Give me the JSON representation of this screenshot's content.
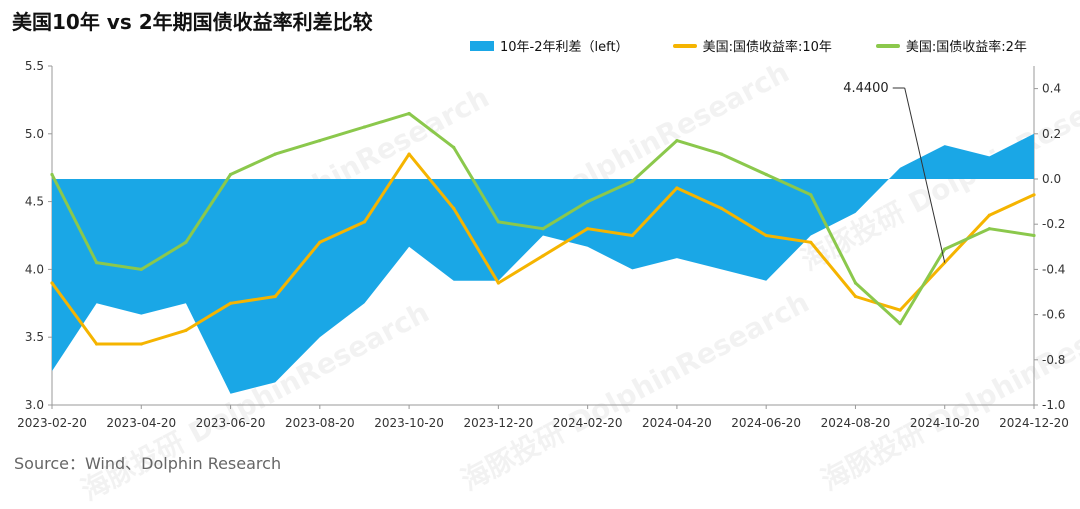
{
  "title": "美国10年 vs 2年期国债收益率利差比较",
  "source": "Source：Wind、Dolphin Research",
  "watermark": "海豚投研 DolphinResearch",
  "colors": {
    "spread": "#1aa7e6",
    "ten_year": "#f5b400",
    "two_year": "#8bc84c"
  },
  "chart_data": {
    "type": "line",
    "title": "美国10年 vs 2年期国债收益率利差比较",
    "x": [
      "2023-02-20",
      "2023-03-20",
      "2023-04-20",
      "2023-05-20",
      "2023-06-20",
      "2023-07-20",
      "2023-08-20",
      "2023-09-20",
      "2023-10-20",
      "2023-11-20",
      "2023-12-20",
      "2024-01-20",
      "2024-02-20",
      "2024-03-20",
      "2024-04-20",
      "2024-05-20",
      "2024-06-20",
      "2024-07-20",
      "2024-08-20",
      "2024-09-20",
      "2024-10-20",
      "2024-11-20",
      "2024-12-20"
    ],
    "x_tick_labels": [
      "2023-02-20",
      "2023-04-20",
      "2023-06-20",
      "2023-08-20",
      "2023-10-20",
      "2023-12-20",
      "2024-02-20",
      "2024-04-20",
      "2024-06-20",
      "2024-08-20",
      "2024-10-20",
      "2024-12-20"
    ],
    "left_axis": {
      "ylim": [
        3.0,
        5.5
      ],
      "ticks": [
        "3.0",
        "3.5",
        "4.0",
        "4.5",
        "5.0",
        "5.5"
      ]
    },
    "right_axis": {
      "ylim": [
        -1.0,
        0.5
      ],
      "ticks": [
        "-1.0",
        "-0.8",
        "-0.6",
        "-0.4",
        "-0.2",
        "0.0",
        "0.2",
        "0.4"
      ]
    },
    "series": [
      {
        "name": "10年-2年利差（left）",
        "kind": "area",
        "axis": "right",
        "values": [
          -0.85,
          -0.55,
          -0.6,
          -0.55,
          -0.95,
          -0.9,
          -0.7,
          -0.55,
          -0.3,
          -0.45,
          -0.45,
          -0.25,
          -0.3,
          -0.4,
          -0.35,
          -0.4,
          -0.45,
          -0.25,
          -0.15,
          0.05,
          0.15,
          0.1,
          0.2
        ]
      },
      {
        "name": "美国:国债收益率:10年",
        "kind": "line",
        "axis": "left",
        "values": [
          3.9,
          3.45,
          3.45,
          3.55,
          3.75,
          3.8,
          4.2,
          4.35,
          4.85,
          4.45,
          3.9,
          4.1,
          4.3,
          4.25,
          4.6,
          4.45,
          4.25,
          4.2,
          3.8,
          3.7,
          4.05,
          4.4,
          4.55
        ]
      },
      {
        "name": "美国:国债收益率:2年",
        "kind": "line",
        "axis": "left",
        "values": [
          4.7,
          4.05,
          4.0,
          4.2,
          4.7,
          4.85,
          4.95,
          5.05,
          5.15,
          4.9,
          4.35,
          4.3,
          4.5,
          4.65,
          4.95,
          4.85,
          4.7,
          4.55,
          3.9,
          3.6,
          4.15,
          4.3,
          4.25
        ]
      }
    ],
    "annotations": [
      "4.4400"
    ],
    "legend": [
      "10年-2年利差（left）",
      "美国:国债收益率:10年",
      "美国:国债收益率:2年"
    ],
    "grid": false,
    "legend_position": "top-right"
  }
}
